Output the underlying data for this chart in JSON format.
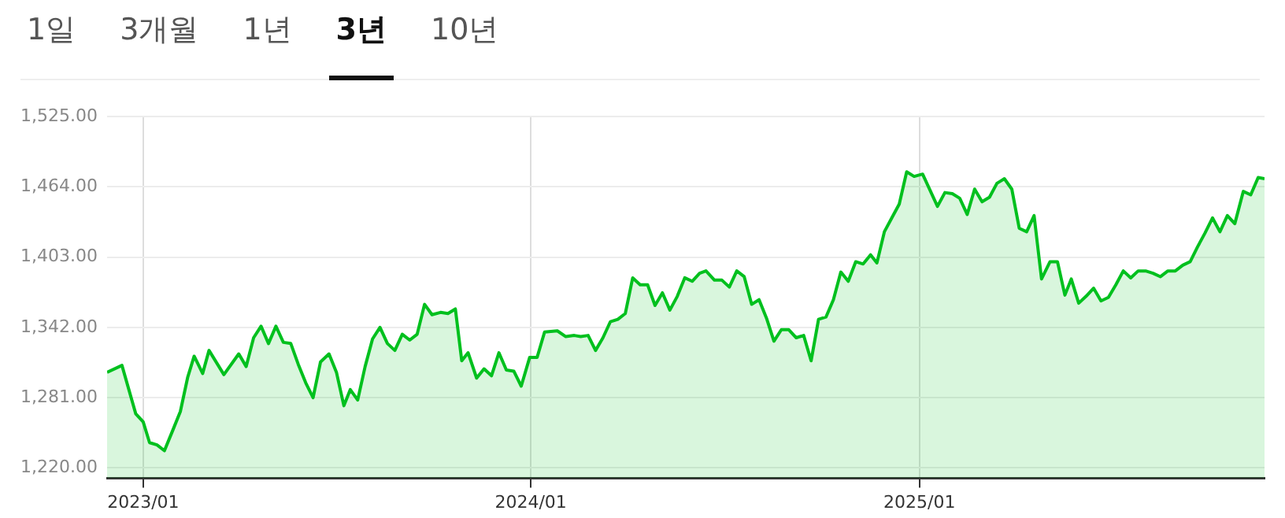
{
  "chart_data": {
    "type": "area",
    "annotations": [
      "1일",
      "3개월",
      "1년",
      "3년",
      "10년"
    ],
    "x": [
      "2022-11-28",
      "2022-12-12",
      "2022-12-25",
      "2023-01-01",
      "2023-01-07",
      "2023-01-14",
      "2023-01-21",
      "2023-01-29",
      "2023-02-05",
      "2023-02-12",
      "2023-02-18",
      "2023-02-26",
      "2023-03-04",
      "2023-03-18",
      "2023-04-01",
      "2023-04-08",
      "2023-04-15",
      "2023-04-22",
      "2023-04-29",
      "2023-05-06",
      "2023-05-13",
      "2023-05-20",
      "2023-05-27",
      "2023-06-03",
      "2023-06-10",
      "2023-06-17",
      "2023-06-25",
      "2023-07-02",
      "2023-07-09",
      "2023-07-15",
      "2023-07-22",
      "2023-07-29",
      "2023-08-05",
      "2023-08-12",
      "2023-08-19",
      "2023-08-26",
      "2023-09-02",
      "2023-09-09",
      "2023-09-16",
      "2023-09-23",
      "2023-09-30",
      "2023-10-08",
      "2023-10-15",
      "2023-10-22",
      "2023-10-28",
      "2023-11-03",
      "2023-11-11",
      "2023-11-18",
      "2023-11-25",
      "2023-12-02",
      "2023-12-09",
      "2023-12-16",
      "2023-12-23",
      "2023-12-31",
      "2024-01-07",
      "2024-01-14",
      "2024-01-26",
      "2024-02-03",
      "2024-02-11",
      "2024-02-17",
      "2024-02-24",
      "2024-03-02",
      "2024-03-09",
      "2024-03-16",
      "2024-03-23",
      "2024-03-30",
      "2024-04-06",
      "2024-04-13",
      "2024-04-20",
      "2024-04-27",
      "2024-05-04",
      "2024-05-11",
      "2024-05-18",
      "2024-05-25",
      "2024-06-01",
      "2024-06-08",
      "2024-06-14",
      "2024-06-22",
      "2024-06-29",
      "2024-07-06",
      "2024-07-13",
      "2024-07-20",
      "2024-07-27",
      "2024-08-03",
      "2024-08-10",
      "2024-08-17",
      "2024-08-24",
      "2024-08-31",
      "2024-09-07",
      "2024-09-14",
      "2024-09-21",
      "2024-09-28",
      "2024-10-05",
      "2024-10-12",
      "2024-10-19",
      "2024-10-26",
      "2024-11-02",
      "2024-11-09",
      "2024-11-16",
      "2024-11-22",
      "2024-11-29",
      "2024-12-06",
      "2024-12-13",
      "2024-12-20",
      "2024-12-27",
      "2025-01-04",
      "2025-01-11",
      "2025-01-18",
      "2025-01-25",
      "2025-02-01",
      "2025-02-08",
      "2025-02-15",
      "2025-02-22",
      "2025-03-01",
      "2025-03-08",
      "2025-03-15",
      "2025-03-22",
      "2025-03-29",
      "2025-04-05",
      "2025-04-12",
      "2025-04-19",
      "2025-04-26",
      "2025-05-04",
      "2025-05-11",
      "2025-05-18",
      "2025-05-24",
      "2025-05-31",
      "2025-06-07",
      "2025-06-14",
      "2025-06-21",
      "2025-06-28",
      "2025-07-05",
      "2025-07-12",
      "2025-07-19",
      "2025-07-26",
      "2025-08-02",
      "2025-08-09",
      "2025-08-16",
      "2025-08-23",
      "2025-08-30",
      "2025-09-06",
      "2025-09-13",
      "2025-09-20",
      "2025-09-27",
      "2025-10-04",
      "2025-10-11",
      "2025-10-18",
      "2025-10-25",
      "2025-11-02",
      "2025-11-09",
      "2025-11-16",
      "2025-11-22"
    ],
    "series": [
      {
        "color": "#00c01e",
        "values": [
          1303,
          1309,
          1267,
          1260,
          1242,
          1240,
          1235,
          1253,
          1269,
          1299,
          1317,
          1302,
          1322,
          1301,
          1319,
          1308,
          1333,
          1343,
          1328,
          1343,
          1329,
          1328,
          1310,
          1294,
          1281,
          1312,
          1319,
          1303,
          1274,
          1288,
          1279,
          1308,
          1332,
          1342,
          1328,
          1322,
          1336,
          1331,
          1336,
          1362,
          1353,
          1355,
          1354,
          1358,
          1313,
          1320,
          1298,
          1306,
          1300,
          1320,
          1305,
          1304,
          1291,
          1316,
          1316,
          1338,
          1339,
          1334,
          1335,
          1334,
          1335,
          1322,
          1333,
          1347,
          1349,
          1354,
          1385,
          1379,
          1379,
          1361,
          1372,
          1357,
          1369,
          1385,
          1382,
          1389,
          1391,
          1383,
          1383,
          1377,
          1391,
          1386,
          1362,
          1366,
          1350,
          1330,
          1340,
          1340,
          1333,
          1335,
          1313,
          1349,
          1351,
          1366,
          1390,
          1382,
          1399,
          1397,
          1405,
          1398,
          1425,
          1437,
          1449,
          1477,
          1473,
          1475,
          1461,
          1447,
          1459,
          1458,
          1454,
          1440,
          1462,
          1451,
          1455,
          1467,
          1471,
          1462,
          1428,
          1425,
          1439,
          1384,
          1399,
          1399,
          1370,
          1384,
          1363,
          1369,
          1376,
          1365,
          1368,
          1379,
          1391,
          1385,
          1391,
          1391,
          1389,
          1386,
          1391,
          1391,
          1396,
          1399,
          1412,
          1424,
          1437,
          1425,
          1439,
          1432,
          1460,
          1457,
          1472,
          1471
        ]
      }
    ],
    "xlim": [
      "2022-11-28",
      "2025-11-22"
    ],
    "xticks": [
      {
        "value": "2023-01",
        "label": "2023/01"
      },
      {
        "value": "2024-01",
        "label": "2024/01"
      },
      {
        "value": "2025-01",
        "label": "2025/01"
      }
    ],
    "ylim": [
      1211,
      1525
    ],
    "yticks": [
      {
        "value": 1220,
        "label": "1,220.00"
      },
      {
        "value": 1281,
        "label": "1,281.00"
      },
      {
        "value": 1342,
        "label": "1,342.00"
      },
      {
        "value": 1403,
        "label": "1,403.00"
      },
      {
        "value": 1464,
        "label": "1,464.00"
      },
      {
        "value": 1525,
        "label": "1,525.00"
      }
    ],
    "grid": true
  }
}
